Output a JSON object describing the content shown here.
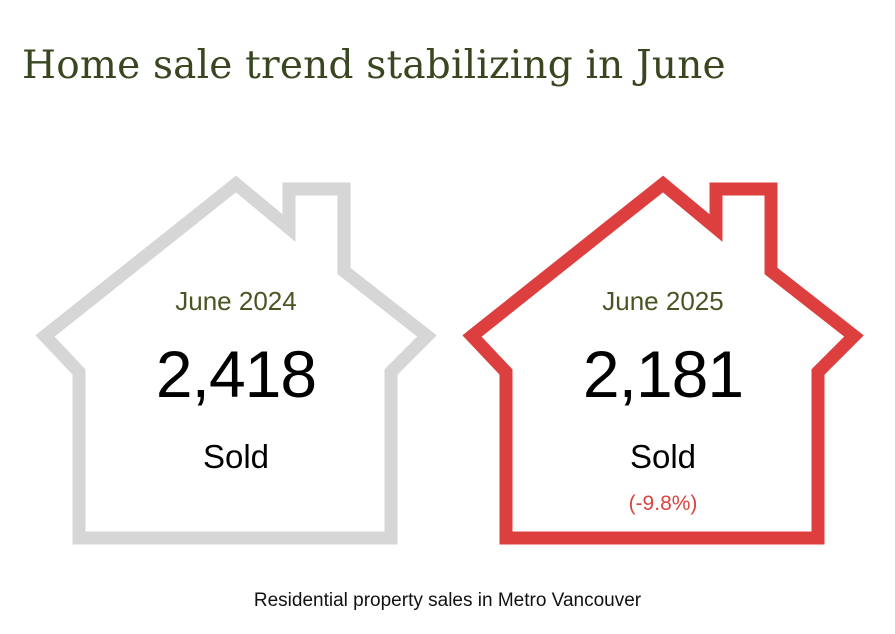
{
  "headline": "Home sale trend stabilizing in June",
  "cards": [
    {
      "period": "June 2024",
      "value": "2,418",
      "unit": "Sold",
      "change": "",
      "outline_color": "#d6d6d6"
    },
    {
      "period": "June 2025",
      "value": "2,181",
      "unit": "Sold",
      "change": "(-9.8%)",
      "outline_color": "#dc3f3e"
    }
  ],
  "caption": "Residential property sales in Metro Vancouver",
  "icons": [
    "house-outline-icon",
    "house-outline-icon"
  ]
}
